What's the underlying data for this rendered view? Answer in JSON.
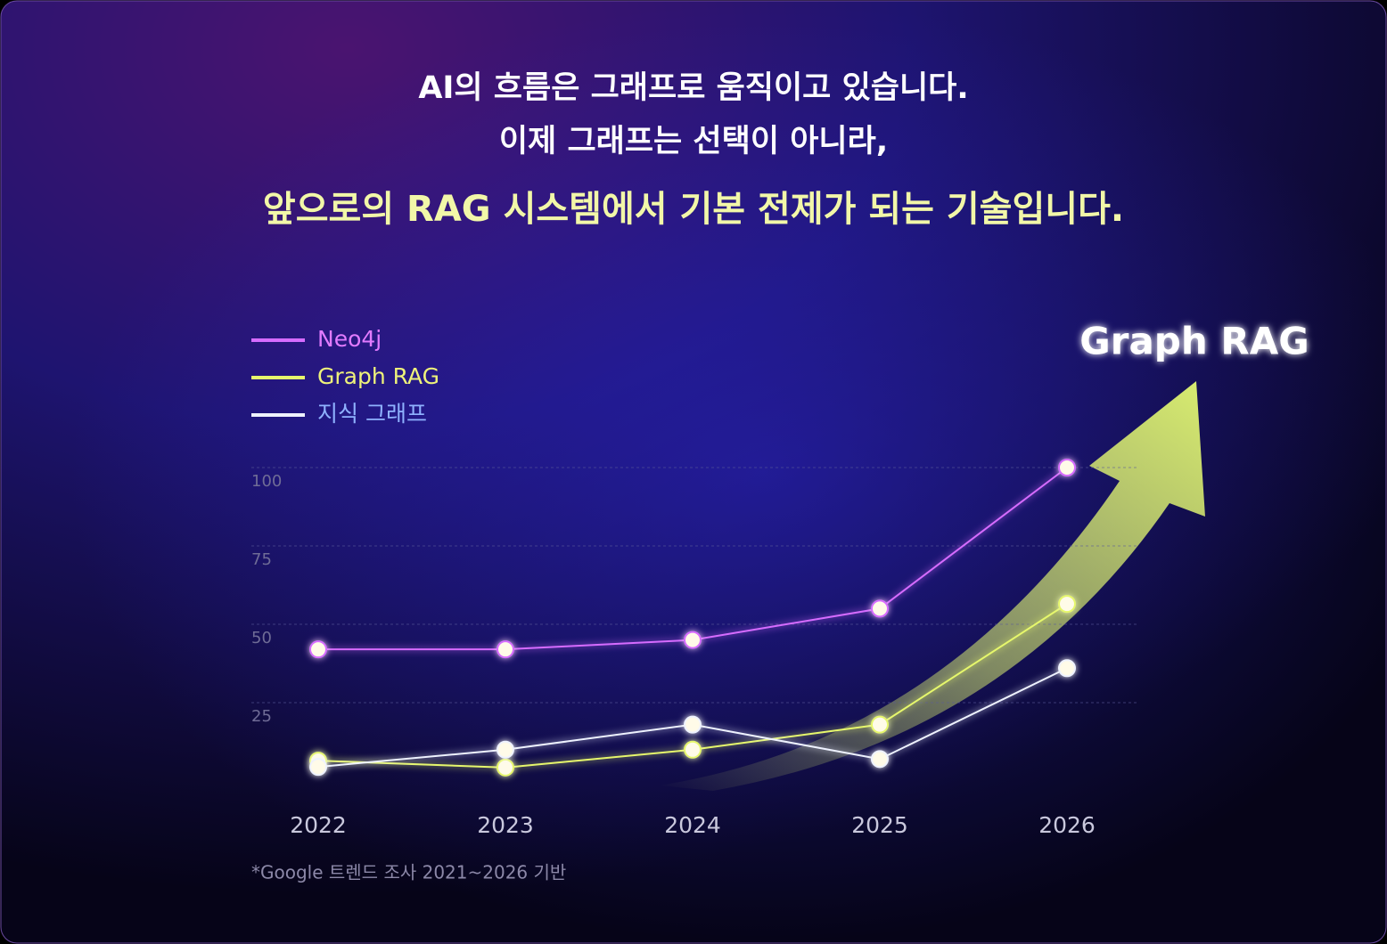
{
  "chart_data": {
    "type": "line",
    "title_lines": [
      "AI의 흐름은 그래프로 움직이고 있습니다.",
      "이제 그래프는 선택이 아니라,",
      "앞으로의 RAG 시스템에서 기본 전제가 되는 기술입니다."
    ],
    "annotation": "Graph RAG",
    "footnote": "*Google 트렌드 조사 2021~2026 기반",
    "categories": [
      "2022",
      "2023",
      "2024",
      "2025",
      "2026"
    ],
    "series": [
      {
        "name": "Neo4j",
        "color": "#d66cff",
        "legend_text_color": "#e27bff",
        "values": [
          42,
          42,
          45,
          55,
          100
        ]
      },
      {
        "name": "Graph RAG",
        "color": "#e6f76c",
        "legend_text_color": "#eef27a",
        "values": [
          6.5,
          4.3,
          10,
          18,
          56.5
        ]
      },
      {
        "name": "지식 그래프",
        "color": "#eef2ff",
        "legend_text_color": "#8fb2ff",
        "values": [
          4.5,
          10,
          18,
          7,
          36
        ]
      }
    ],
    "ylim": [
      0,
      100
    ],
    "yticks": [
      25,
      50,
      75,
      100
    ],
    "grid": true
  }
}
